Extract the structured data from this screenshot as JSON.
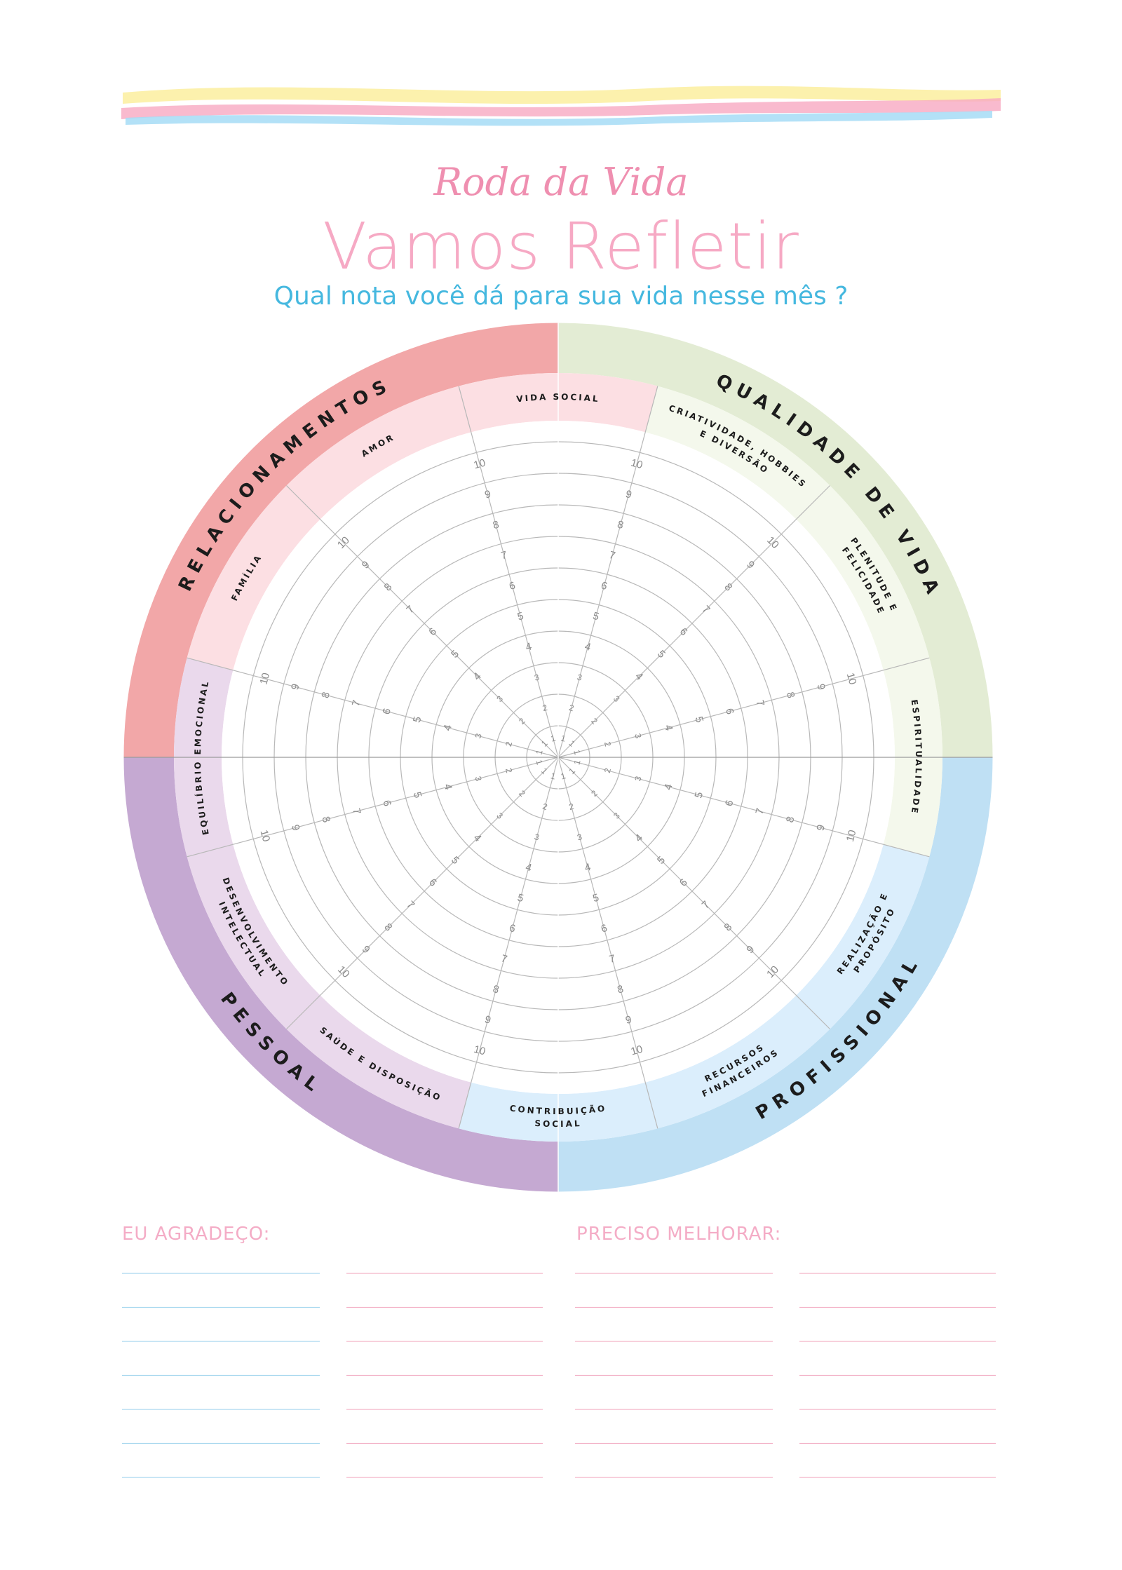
{
  "header": {
    "script_title": "Roda da Vida",
    "title": "Vamos Refletir",
    "question": "Qual nota você dá para sua vida nesse mês ?"
  },
  "wheel": {
    "scale": [
      "1",
      "2",
      "3",
      "4",
      "5",
      "6",
      "7",
      "8",
      "9",
      "10"
    ],
    "groups": [
      {
        "name": "RELACIONAMENTOS",
        "color": "#f2a7a8"
      },
      {
        "name": "QUALIDADE DE VIDA",
        "color": "#e3ecd4"
      },
      {
        "name": "PROFISSIONAL",
        "color": "#bfe0f4"
      },
      {
        "name": "PESSOAL",
        "color": "#c5a9d2"
      }
    ],
    "areas": [
      {
        "lines": [
          "VIDA SOCIAL"
        ],
        "fill": "#fcdfe3"
      },
      {
        "lines": [
          "CRIATIVIDADE, HOBBIES",
          "E DIVERSÃO"
        ],
        "fill": "#f4f8ec"
      },
      {
        "lines": [
          "PLENITUDE E",
          "FELICIDADE"
        ],
        "fill": "#f4f8ec"
      },
      {
        "lines": [
          "ESPIRITUALIDADE"
        ],
        "fill": "#f4f8ec"
      },
      {
        "lines": [
          "REALIZAÇÃO E",
          "PROPÓSITO"
        ],
        "fill": "#dbeefc"
      },
      {
        "lines": [
          "RECURSOS",
          "FINANCEIROS"
        ],
        "fill": "#dbeefc"
      },
      {
        "lines": [
          "CONTRIBUIÇÃO",
          "SOCIAL"
        ],
        "fill": "#dbeefc"
      },
      {
        "lines": [
          "SAÚDE E DISPOSIÇÃO"
        ],
        "fill": "#ead9ec"
      },
      {
        "lines": [
          "DESENVOLVIMENTO",
          "INTELECTUAL"
        ],
        "fill": "#ead9ec"
      },
      {
        "lines": [
          "EQUILÍBRIO EMOCIONAL"
        ],
        "fill": "#ead9ec"
      },
      {
        "lines": [
          "FAMÍLIA"
        ],
        "fill": "#fcdfe3"
      },
      {
        "lines": [
          "AMOR"
        ],
        "fill": "#fcdfe3"
      }
    ]
  },
  "notes": {
    "grateful_heading": "EU AGRADEÇO:",
    "improve_heading": "PRECISO MELHORAR:"
  }
}
